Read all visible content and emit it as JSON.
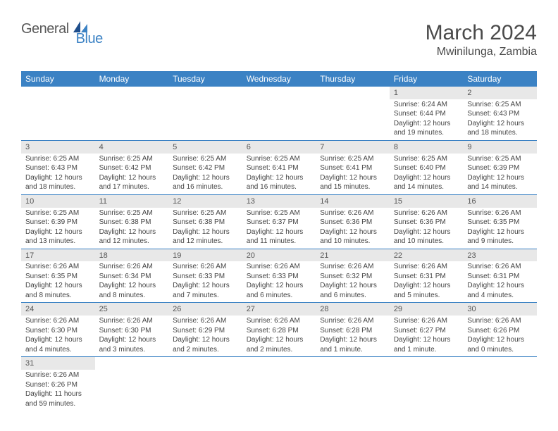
{
  "logo": {
    "general": "General",
    "blue": "Blue"
  },
  "title": "March 2024",
  "location": "Mwinilunga, Zambia",
  "colors": {
    "header_bg": "#3b82c4",
    "header_fg": "#ffffff",
    "daynum_bg": "#e8e8e8",
    "border": "#3b82c4"
  },
  "weekdays": [
    "Sunday",
    "Monday",
    "Tuesday",
    "Wednesday",
    "Thursday",
    "Friday",
    "Saturday"
  ],
  "weeks": [
    [
      {
        "blank": true
      },
      {
        "blank": true
      },
      {
        "blank": true
      },
      {
        "blank": true
      },
      {
        "blank": true
      },
      {
        "day": "1",
        "sunrise": "Sunrise: 6:24 AM",
        "sunset": "Sunset: 6:44 PM",
        "daylight": "Daylight: 12 hours and 19 minutes."
      },
      {
        "day": "2",
        "sunrise": "Sunrise: 6:25 AM",
        "sunset": "Sunset: 6:43 PM",
        "daylight": "Daylight: 12 hours and 18 minutes."
      }
    ],
    [
      {
        "day": "3",
        "sunrise": "Sunrise: 6:25 AM",
        "sunset": "Sunset: 6:43 PM",
        "daylight": "Daylight: 12 hours and 18 minutes."
      },
      {
        "day": "4",
        "sunrise": "Sunrise: 6:25 AM",
        "sunset": "Sunset: 6:42 PM",
        "daylight": "Daylight: 12 hours and 17 minutes."
      },
      {
        "day": "5",
        "sunrise": "Sunrise: 6:25 AM",
        "sunset": "Sunset: 6:42 PM",
        "daylight": "Daylight: 12 hours and 16 minutes."
      },
      {
        "day": "6",
        "sunrise": "Sunrise: 6:25 AM",
        "sunset": "Sunset: 6:41 PM",
        "daylight": "Daylight: 12 hours and 16 minutes."
      },
      {
        "day": "7",
        "sunrise": "Sunrise: 6:25 AM",
        "sunset": "Sunset: 6:41 PM",
        "daylight": "Daylight: 12 hours and 15 minutes."
      },
      {
        "day": "8",
        "sunrise": "Sunrise: 6:25 AM",
        "sunset": "Sunset: 6:40 PM",
        "daylight": "Daylight: 12 hours and 14 minutes."
      },
      {
        "day": "9",
        "sunrise": "Sunrise: 6:25 AM",
        "sunset": "Sunset: 6:39 PM",
        "daylight": "Daylight: 12 hours and 14 minutes."
      }
    ],
    [
      {
        "day": "10",
        "sunrise": "Sunrise: 6:25 AM",
        "sunset": "Sunset: 6:39 PM",
        "daylight": "Daylight: 12 hours and 13 minutes."
      },
      {
        "day": "11",
        "sunrise": "Sunrise: 6:25 AM",
        "sunset": "Sunset: 6:38 PM",
        "daylight": "Daylight: 12 hours and 12 minutes."
      },
      {
        "day": "12",
        "sunrise": "Sunrise: 6:25 AM",
        "sunset": "Sunset: 6:38 PM",
        "daylight": "Daylight: 12 hours and 12 minutes."
      },
      {
        "day": "13",
        "sunrise": "Sunrise: 6:25 AM",
        "sunset": "Sunset: 6:37 PM",
        "daylight": "Daylight: 12 hours and 11 minutes."
      },
      {
        "day": "14",
        "sunrise": "Sunrise: 6:26 AM",
        "sunset": "Sunset: 6:36 PM",
        "daylight": "Daylight: 12 hours and 10 minutes."
      },
      {
        "day": "15",
        "sunrise": "Sunrise: 6:26 AM",
        "sunset": "Sunset: 6:36 PM",
        "daylight": "Daylight: 12 hours and 10 minutes."
      },
      {
        "day": "16",
        "sunrise": "Sunrise: 6:26 AM",
        "sunset": "Sunset: 6:35 PM",
        "daylight": "Daylight: 12 hours and 9 minutes."
      }
    ],
    [
      {
        "day": "17",
        "sunrise": "Sunrise: 6:26 AM",
        "sunset": "Sunset: 6:35 PM",
        "daylight": "Daylight: 12 hours and 8 minutes."
      },
      {
        "day": "18",
        "sunrise": "Sunrise: 6:26 AM",
        "sunset": "Sunset: 6:34 PM",
        "daylight": "Daylight: 12 hours and 8 minutes."
      },
      {
        "day": "19",
        "sunrise": "Sunrise: 6:26 AM",
        "sunset": "Sunset: 6:33 PM",
        "daylight": "Daylight: 12 hours and 7 minutes."
      },
      {
        "day": "20",
        "sunrise": "Sunrise: 6:26 AM",
        "sunset": "Sunset: 6:33 PM",
        "daylight": "Daylight: 12 hours and 6 minutes."
      },
      {
        "day": "21",
        "sunrise": "Sunrise: 6:26 AM",
        "sunset": "Sunset: 6:32 PM",
        "daylight": "Daylight: 12 hours and 6 minutes."
      },
      {
        "day": "22",
        "sunrise": "Sunrise: 6:26 AM",
        "sunset": "Sunset: 6:31 PM",
        "daylight": "Daylight: 12 hours and 5 minutes."
      },
      {
        "day": "23",
        "sunrise": "Sunrise: 6:26 AM",
        "sunset": "Sunset: 6:31 PM",
        "daylight": "Daylight: 12 hours and 4 minutes."
      }
    ],
    [
      {
        "day": "24",
        "sunrise": "Sunrise: 6:26 AM",
        "sunset": "Sunset: 6:30 PM",
        "daylight": "Daylight: 12 hours and 4 minutes."
      },
      {
        "day": "25",
        "sunrise": "Sunrise: 6:26 AM",
        "sunset": "Sunset: 6:30 PM",
        "daylight": "Daylight: 12 hours and 3 minutes."
      },
      {
        "day": "26",
        "sunrise": "Sunrise: 6:26 AM",
        "sunset": "Sunset: 6:29 PM",
        "daylight": "Daylight: 12 hours and 2 minutes."
      },
      {
        "day": "27",
        "sunrise": "Sunrise: 6:26 AM",
        "sunset": "Sunset: 6:28 PM",
        "daylight": "Daylight: 12 hours and 2 minutes."
      },
      {
        "day": "28",
        "sunrise": "Sunrise: 6:26 AM",
        "sunset": "Sunset: 6:28 PM",
        "daylight": "Daylight: 12 hours and 1 minute."
      },
      {
        "day": "29",
        "sunrise": "Sunrise: 6:26 AM",
        "sunset": "Sunset: 6:27 PM",
        "daylight": "Daylight: 12 hours and 1 minute."
      },
      {
        "day": "30",
        "sunrise": "Sunrise: 6:26 AM",
        "sunset": "Sunset: 6:26 PM",
        "daylight": "Daylight: 12 hours and 0 minutes."
      }
    ],
    [
      {
        "day": "31",
        "sunrise": "Sunrise: 6:26 AM",
        "sunset": "Sunset: 6:26 PM",
        "daylight": "Daylight: 11 hours and 59 minutes."
      },
      {
        "blank": true
      },
      {
        "blank": true
      },
      {
        "blank": true
      },
      {
        "blank": true
      },
      {
        "blank": true
      },
      {
        "blank": true
      }
    ]
  ]
}
